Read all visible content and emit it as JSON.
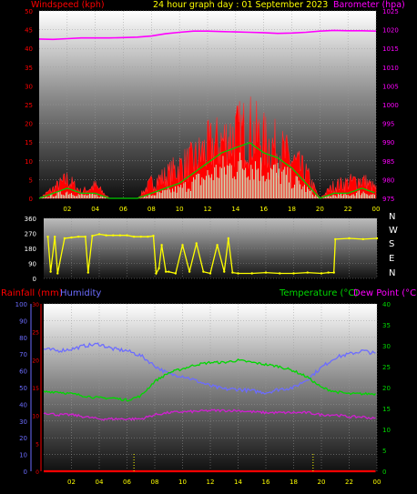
{
  "title": "24 hour graph day : 01 September 2023",
  "colors": {
    "windspeed": "#ff2020",
    "gust_fill": "#ff0000",
    "avg": "#00cc00",
    "light": "#c8f0c8",
    "barometer": "#ff00ff",
    "direction": "#ffff00",
    "humidity": "#6c6cff",
    "temperature": "#00d800",
    "dewpoint": "#d020d0",
    "rainfall": "#ff0000",
    "hour_marker": "#ffff00",
    "axis_text_time": "#ffff00"
  },
  "chart_data": [
    {
      "type": "line",
      "name": "wind-barometer",
      "title": "24 hour graph day : 01 September 2023",
      "left_axis_label": "Windspeed (kph)",
      "right_axis_label": "Barometer (hpa)",
      "x_ticks": [
        "02",
        "04",
        "06",
        "08",
        "10",
        "12",
        "14",
        "16",
        "18",
        "20",
        "22",
        "00"
      ],
      "left_ticks": [
        "0",
        "5",
        "10",
        "15",
        "20",
        "25",
        "30",
        "35",
        "40",
        "45",
        "50"
      ],
      "right_ticks": [
        "975",
        "980",
        "985",
        "990",
        "995",
        "1000",
        "1005",
        "1010",
        "1015",
        "1020",
        "1025"
      ],
      "ylim_left": [
        0,
        50
      ],
      "ylim_right": [
        975,
        1025
      ],
      "grid": true,
      "hours": [
        0,
        1,
        2,
        3,
        4,
        5,
        6,
        7,
        8,
        9,
        10,
        11,
        12,
        13,
        14,
        15,
        16,
        17,
        18,
        19,
        20,
        21,
        22,
        23,
        24
      ],
      "series": [
        {
          "name": "Windspeed (kph)",
          "kind": "gust",
          "values": [
            0,
            3,
            6,
            2,
            4,
            0,
            0,
            0,
            5,
            7,
            10,
            12,
            16,
            18,
            20,
            22,
            18,
            16,
            12,
            8,
            0,
            4,
            5,
            6,
            3
          ]
        },
        {
          "name": "Average",
          "kind": "average",
          "values": [
            0,
            1,
            2,
            1,
            1,
            0,
            0,
            0,
            1,
            2,
            3,
            5,
            7,
            9,
            10,
            11,
            9,
            8,
            6,
            3,
            0,
            1,
            1,
            2,
            1
          ]
        },
        {
          "name": "Barometer (hpa)",
          "kind": "pressure",
          "values": [
            1017.5,
            1017.4,
            1017.6,
            1017.8,
            1017.8,
            1017.8,
            1017.9,
            1018.0,
            1018.3,
            1018.9,
            1019.3,
            1019.6,
            1019.6,
            1019.5,
            1019.4,
            1019.3,
            1019.2,
            1019.0,
            1019.1,
            1019.3,
            1019.6,
            1019.8,
            1019.7,
            1019.7,
            1019.6
          ]
        }
      ]
    },
    {
      "type": "scatter",
      "name": "wind-direction",
      "y_ticks": [
        "0",
        "90",
        "180",
        "270",
        "360"
      ],
      "compass_labels": [
        "N",
        "W",
        "S",
        "E",
        "N"
      ],
      "ylim": [
        0,
        360
      ],
      "x_range": [
        0,
        24
      ],
      "series": [
        {
          "name": "Direction",
          "points": [
            [
              0.3,
              250
            ],
            [
              0.5,
              40
            ],
            [
              0.8,
              250
            ],
            [
              1.0,
              30
            ],
            [
              1.5,
              240
            ],
            [
              2.0,
              245
            ],
            [
              2.5,
              250
            ],
            [
              3.0,
              250
            ],
            [
              3.2,
              35
            ],
            [
              3.5,
              255
            ],
            [
              4.0,
              265
            ],
            [
              4.5,
              258
            ],
            [
              5.0,
              258
            ],
            [
              5.5,
              258
            ],
            [
              6.0,
              258
            ],
            [
              6.5,
              250
            ],
            [
              7.0,
              250
            ],
            [
              7.5,
              250
            ],
            [
              7.9,
              255
            ],
            [
              8.1,
              30
            ],
            [
              8.3,
              60
            ],
            [
              8.5,
              200
            ],
            [
              8.8,
              40
            ],
            [
              9.0,
              40
            ],
            [
              9.5,
              30
            ],
            [
              10.0,
              200
            ],
            [
              10.5,
              40
            ],
            [
              11.0,
              210
            ],
            [
              11.5,
              40
            ],
            [
              12.0,
              30
            ],
            [
              12.5,
              200
            ],
            [
              13.0,
              40
            ],
            [
              13.3,
              240
            ],
            [
              13.6,
              35
            ],
            [
              14.0,
              30
            ],
            [
              15.0,
              30
            ],
            [
              16.0,
              35
            ],
            [
              17.0,
              30
            ],
            [
              18.0,
              30
            ],
            [
              19.0,
              35
            ],
            [
              20.0,
              30
            ],
            [
              20.5,
              35
            ],
            [
              20.9,
              35
            ],
            [
              21.0,
              235
            ],
            [
              22.0,
              240
            ],
            [
              23.0,
              235
            ],
            [
              24.0,
              240
            ]
          ]
        }
      ]
    },
    {
      "type": "line",
      "name": "temperature-humidity",
      "left_label_1": "Rainfall (mm)",
      "left_label_2": "Humidity",
      "right_label_1": "Temperature (°C)",
      "right_label_2": "Dew Point (°C)",
      "x_ticks": [
        "02",
        "04",
        "06",
        "08",
        "10",
        "12",
        "14",
        "16",
        "18",
        "20",
        "22",
        "00"
      ],
      "humidity_ticks": [
        "0",
        "10",
        "20",
        "30",
        "40",
        "50",
        "60",
        "70",
        "80",
        "90",
        "100"
      ],
      "rain_ticks": [
        "0",
        "5",
        "10",
        "15",
        "20",
        "25",
        "30"
      ],
      "temp_ticks": [
        "0",
        "5",
        "10",
        "15",
        "20",
        "25",
        "30",
        "35",
        "40"
      ],
      "ylim_humidity": [
        0,
        100
      ],
      "ylim_rain": [
        0,
        30
      ],
      "ylim_temp": [
        0,
        40
      ],
      "grid": true,
      "hours": [
        0,
        1,
        2,
        3,
        4,
        5,
        6,
        7,
        8,
        9,
        10,
        11,
        12,
        13,
        14,
        15,
        16,
        17,
        18,
        19,
        20,
        21,
        22,
        23,
        24
      ],
      "series": [
        {
          "name": "Humidity",
          "axis": "humidity",
          "values": [
            73,
            72,
            73,
            75,
            76,
            73,
            72,
            69,
            63,
            58,
            57,
            54,
            51,
            49,
            49,
            48,
            47,
            49,
            50,
            55,
            62,
            68,
            70,
            72,
            70
          ]
        },
        {
          "name": "Temperature (°C)",
          "axis": "temp",
          "values": [
            19,
            19,
            18.5,
            18,
            17.5,
            17.5,
            17,
            18,
            21.5,
            23.5,
            24.5,
            25.5,
            26,
            26,
            26.5,
            26,
            25.5,
            25,
            24,
            22.5,
            20,
            19,
            18.5,
            18.5,
            18.5
          ]
        },
        {
          "name": "Dew Point (°C)",
          "axis": "temp",
          "values": [
            14,
            13.5,
            13.5,
            13,
            12.5,
            12.5,
            12.5,
            12.5,
            13.5,
            14,
            14.2,
            14.3,
            14.5,
            14.5,
            14.5,
            14.2,
            14,
            14,
            14,
            14,
            13.5,
            13.5,
            13,
            13,
            12.5
          ]
        },
        {
          "name": "Rainfall (mm)",
          "axis": "rain",
          "values": [
            0,
            0,
            0,
            0,
            0,
            0,
            0,
            0,
            0,
            0,
            0,
            0,
            0,
            0,
            0,
            0,
            0,
            0,
            0,
            0,
            0,
            0,
            0,
            0,
            0
          ]
        }
      ]
    }
  ]
}
